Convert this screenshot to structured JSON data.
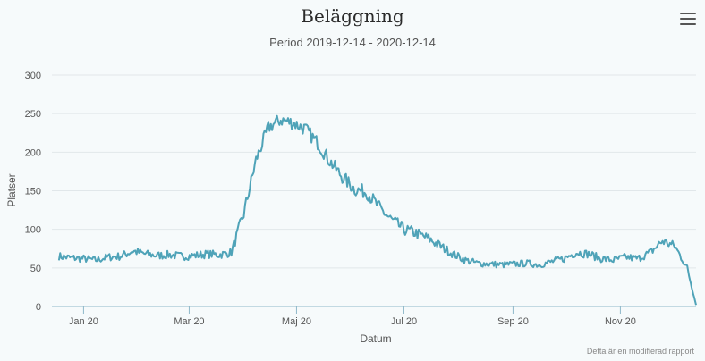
{
  "header": {
    "title": "Beläggning",
    "subtitle": "Period 2019-12-14 - 2020-12-14"
  },
  "footer": {
    "credit": "Detta är en modifierad rapport"
  },
  "menu_icon": "hamburger-menu-icon",
  "colors": {
    "line": "#4fa3b8",
    "grid": "#e1e7ea",
    "axis": "#8fb8c9",
    "background": "#f6fafb"
  },
  "chart_data": {
    "type": "line",
    "title": "Beläggning",
    "subtitle": "Period 2019-12-14 - 2020-12-14",
    "xlabel": "Datum",
    "ylabel": "Platser",
    "ylim": [
      0,
      300
    ],
    "yticks": [
      0,
      50,
      100,
      150,
      200,
      250,
      300
    ],
    "xlim": [
      "2019-12-14",
      "2020-12-14"
    ],
    "xticks": [
      {
        "date": "2020-01-01",
        "label": "Jan 20"
      },
      {
        "date": "2020-03-01",
        "label": "Mar 20"
      },
      {
        "date": "2020-05-01",
        "label": "Maj 20"
      },
      {
        "date": "2020-07-01",
        "label": "Jul 20"
      },
      {
        "date": "2020-09-01",
        "label": "Sep 20"
      },
      {
        "date": "2020-11-01",
        "label": "Nov 20"
      }
    ],
    "grid": true,
    "legend": "none",
    "series": [
      {
        "x": [
          "2019-12-18",
          "2019-12-25",
          "2020-01-01",
          "2020-01-08",
          "2020-01-15",
          "2020-01-22",
          "2020-01-29",
          "2020-02-05",
          "2020-02-12",
          "2020-02-19",
          "2020-02-26",
          "2020-03-04",
          "2020-03-11",
          "2020-03-18",
          "2020-03-25",
          "2020-04-01",
          "2020-04-08",
          "2020-04-15",
          "2020-04-22",
          "2020-04-29",
          "2020-05-06",
          "2020-05-13",
          "2020-05-20",
          "2020-05-27",
          "2020-06-03",
          "2020-06-10",
          "2020-06-17",
          "2020-06-24",
          "2020-07-01",
          "2020-07-08",
          "2020-07-15",
          "2020-07-22",
          "2020-07-29",
          "2020-08-05",
          "2020-08-12",
          "2020-08-19",
          "2020-08-26",
          "2020-09-02",
          "2020-09-09",
          "2020-09-16",
          "2020-09-23",
          "2020-09-30",
          "2020-10-07",
          "2020-10-14",
          "2020-10-21",
          "2020-10-28",
          "2020-11-04",
          "2020-11-11",
          "2020-11-18",
          "2020-11-25",
          "2020-12-02",
          "2020-12-09",
          "2020-12-14"
        ],
        "values": [
          65,
          63,
          62,
          60,
          64,
          65,
          72,
          68,
          66,
          67,
          65,
          66,
          68,
          67,
          70,
          120,
          190,
          232,
          242,
          238,
          230,
          212,
          188,
          168,
          152,
          148,
          128,
          112,
          100,
          95,
          88,
          78,
          68,
          60,
          56,
          55,
          54,
          55,
          56,
          54,
          58,
          62,
          70,
          68,
          62,
          60,
          64,
          62,
          70,
          85,
          78,
          50,
          2
        ]
      }
    ]
  }
}
